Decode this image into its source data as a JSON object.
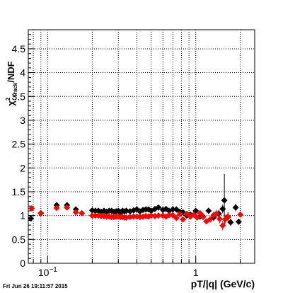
{
  "chart_data": {
    "type": "scatter",
    "x_scale": "log",
    "xlim": [
      0.074,
      2.5
    ],
    "ylim": [
      0,
      4.9
    ],
    "grid": true,
    "y_ticks": [
      "0",
      "0.5",
      "1",
      "1.5",
      "2",
      "2.5",
      "3",
      "3.5",
      "4",
      "4.5"
    ],
    "y_tick_values": [
      0,
      0.5,
      1,
      1.5,
      2,
      2.5,
      3,
      3.5,
      4,
      4.5
    ],
    "x_tick_labels": [
      {
        "value": 0.1,
        "base": "10",
        "exp": "−1"
      },
      {
        "value": 1,
        "base": "1",
        "exp": ""
      }
    ],
    "xlabel": "pT/|q| (GeV/c)",
    "ylabel": {
      "chi": "χ",
      "sup": "2",
      "sub": "Track",
      "rest": "/NDF"
    },
    "series": [
      {
        "color": "#000000",
        "x": [
          0.077,
          0.09,
          0.115,
          0.135,
          0.155,
          0.2,
          0.21,
          0.22,
          0.23,
          0.24,
          0.25,
          0.26,
          0.27,
          0.28,
          0.29,
          0.3,
          0.31,
          0.32,
          0.33,
          0.34,
          0.36,
          0.38,
          0.4,
          0.42,
          0.44,
          0.46,
          0.48,
          0.5,
          0.53,
          0.56,
          0.6,
          0.63,
          0.66,
          0.7,
          0.74,
          0.78,
          0.82,
          0.87,
          0.92,
          1.0,
          1.07,
          1.12,
          1.22,
          1.32,
          1.43,
          1.52,
          1.56,
          1.65,
          1.72,
          1.86,
          1.95
        ],
        "y": [
          0.94,
          1.05,
          1.22,
          1.22,
          1.13,
          1.11,
          1.1,
          1.1,
          1.08,
          1.1,
          1.08,
          1.1,
          1.1,
          1.08,
          1.09,
          1.1,
          1.07,
          1.1,
          1.09,
          1.1,
          1.09,
          1.11,
          1.13,
          1.09,
          1.12,
          1.13,
          1.13,
          1.1,
          1.14,
          1.17,
          1.12,
          1.14,
          1.1,
          1.13,
          1.13,
          1.08,
          1.07,
          1.0,
          1.02,
          1.1,
          0.98,
          0.98,
          1.1,
          0.96,
          1.04,
          1.14,
          1.32,
          0.97,
          0.86,
          1.17,
          0.87
        ],
        "yerr": [
          0.02,
          0.02,
          0.03,
          0.03,
          0.02,
          0.02,
          0.02,
          0.02,
          0.02,
          0.02,
          0.02,
          0.02,
          0.02,
          0.02,
          0.02,
          0.02,
          0.02,
          0.02,
          0.02,
          0.02,
          0.02,
          0.02,
          0.02,
          0.02,
          0.02,
          0.02,
          0.02,
          0.02,
          0.02,
          0.02,
          0.02,
          0.02,
          0.02,
          0.02,
          0.02,
          0.03,
          0.03,
          0.03,
          0.03,
          0.04,
          0.04,
          0.05,
          0.06,
          0.07,
          0.08,
          0.09,
          0.55,
          0.1,
          0.08,
          0.08,
          0.06
        ]
      },
      {
        "color": "#ff0000",
        "x": [
          0.078,
          0.09,
          0.115,
          0.135,
          0.155,
          0.17,
          0.2,
          0.21,
          0.22,
          0.23,
          0.24,
          0.25,
          0.26,
          0.27,
          0.28,
          0.29,
          0.3,
          0.31,
          0.32,
          0.33,
          0.34,
          0.36,
          0.38,
          0.4,
          0.42,
          0.44,
          0.46,
          0.48,
          0.5,
          0.53,
          0.56,
          0.6,
          0.63,
          0.66,
          0.7,
          0.74,
          0.78,
          0.82,
          0.87,
          0.92,
          0.97,
          1.02,
          1.07,
          1.12,
          1.18,
          1.25,
          1.32,
          1.38,
          1.45,
          1.52,
          1.58,
          1.65,
          2.0
        ],
        "y": [
          1.15,
          1.05,
          1.16,
          1.17,
          1.07,
          1.05,
          1.0,
          1.0,
          1.0,
          0.99,
          0.99,
          0.98,
          0.98,
          0.97,
          0.97,
          0.98,
          0.98,
          0.97,
          0.97,
          0.96,
          0.96,
          0.97,
          0.98,
          0.98,
          0.97,
          0.98,
          0.99,
          0.98,
          1.0,
          0.99,
          1.0,
          1.0,
          0.98,
          1.01,
          1.01,
          0.95,
          1.03,
          0.92,
          1.04,
          0.98,
          1.02,
          0.96,
          1.05,
          0.97,
          0.88,
          0.92,
          1.01,
          1.04,
          0.93,
          0.79,
          0.92,
          0.98,
          1.02
        ],
        "yerr": [
          0.02,
          0.02,
          0.02,
          0.02,
          0.02,
          0.02,
          0.02,
          0.02,
          0.02,
          0.02,
          0.02,
          0.02,
          0.02,
          0.02,
          0.02,
          0.02,
          0.02,
          0.02,
          0.02,
          0.02,
          0.02,
          0.02,
          0.02,
          0.02,
          0.02,
          0.02,
          0.02,
          0.02,
          0.02,
          0.02,
          0.02,
          0.02,
          0.03,
          0.03,
          0.03,
          0.03,
          0.03,
          0.04,
          0.04,
          0.04,
          0.05,
          0.05,
          0.05,
          0.06,
          0.06,
          0.07,
          0.08,
          0.08,
          0.09,
          0.1,
          0.1,
          0.1,
          0.05
        ]
      }
    ]
  },
  "footer": {
    "timestamp": "Fri Jun 26 19:11:57 2015"
  }
}
